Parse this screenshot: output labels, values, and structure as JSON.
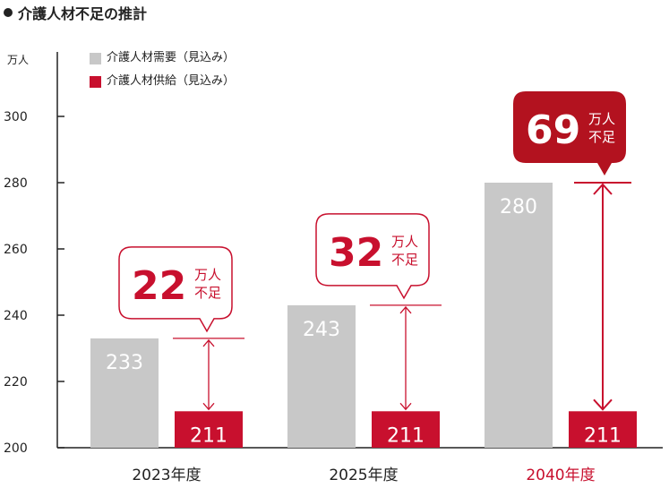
{
  "title": "介護人材不足の推計",
  "unit_label": "万人",
  "colors": {
    "demand": "#c8c8c8",
    "supply": "#c8102e",
    "callout_dark": "#b3121f",
    "text": "#222222"
  },
  "chart_data": {
    "type": "bar",
    "categories": [
      "2023年度",
      "2025年度",
      "2040年度"
    ],
    "series": [
      {
        "name": "介護人材需要（見込み）",
        "values": [
          233,
          243,
          280
        ]
      },
      {
        "name": "介護人材供給（見込み）",
        "values": [
          211,
          211,
          211
        ]
      }
    ],
    "ylim": [
      200,
      310
    ],
    "yticks": [
      200,
      220,
      240,
      260,
      280,
      300
    ],
    "ylabel": "万人",
    "shortage": [
      {
        "value": "22",
        "unit": "万人",
        "label": "不足"
      },
      {
        "value": "32",
        "unit": "万人",
        "label": "不足"
      },
      {
        "value": "69",
        "unit": "万人",
        "label": "不足"
      }
    ],
    "highlight_category": "2040年度",
    "legend_placement": "top-left"
  }
}
